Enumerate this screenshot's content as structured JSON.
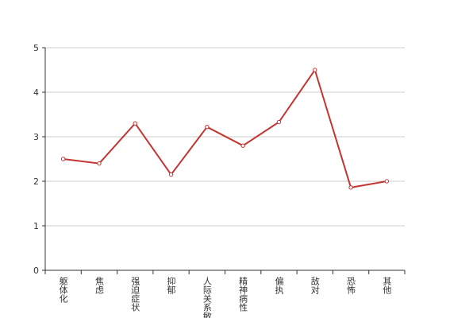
{
  "chart_data": {
    "type": "line",
    "categories": [
      "躯体化",
      "焦虑",
      "强迫症状",
      "抑郁",
      "人际关系敏感",
      "精神病性",
      "偏执",
      "敌对",
      "恐怖",
      "其他"
    ],
    "values": [
      2.5,
      2.4,
      3.3,
      2.15,
      3.22,
      2.8,
      3.33,
      4.5,
      1.86,
      2.0
    ],
    "color": "#c23531",
    "ylim": [
      0,
      5
    ],
    "yticks": [
      0,
      1,
      2,
      3,
      4,
      5
    ],
    "grid": true
  }
}
